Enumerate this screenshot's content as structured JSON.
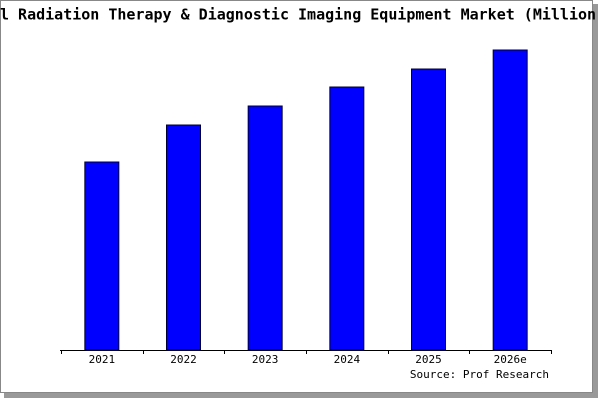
{
  "chart_data": {
    "type": "bar",
    "title": "l Radiation Therapy & Diagnostic Imaging Equipment Market (Million",
    "categories": [
      "2021",
      "2022",
      "2023",
      "2024",
      "2025",
      "2026e"
    ],
    "values": [
      188,
      225,
      244,
      263,
      281,
      300
    ],
    "color": "#0000ff",
    "ylim": [
      0,
      300
    ],
    "source": "Source: Prof Research"
  }
}
